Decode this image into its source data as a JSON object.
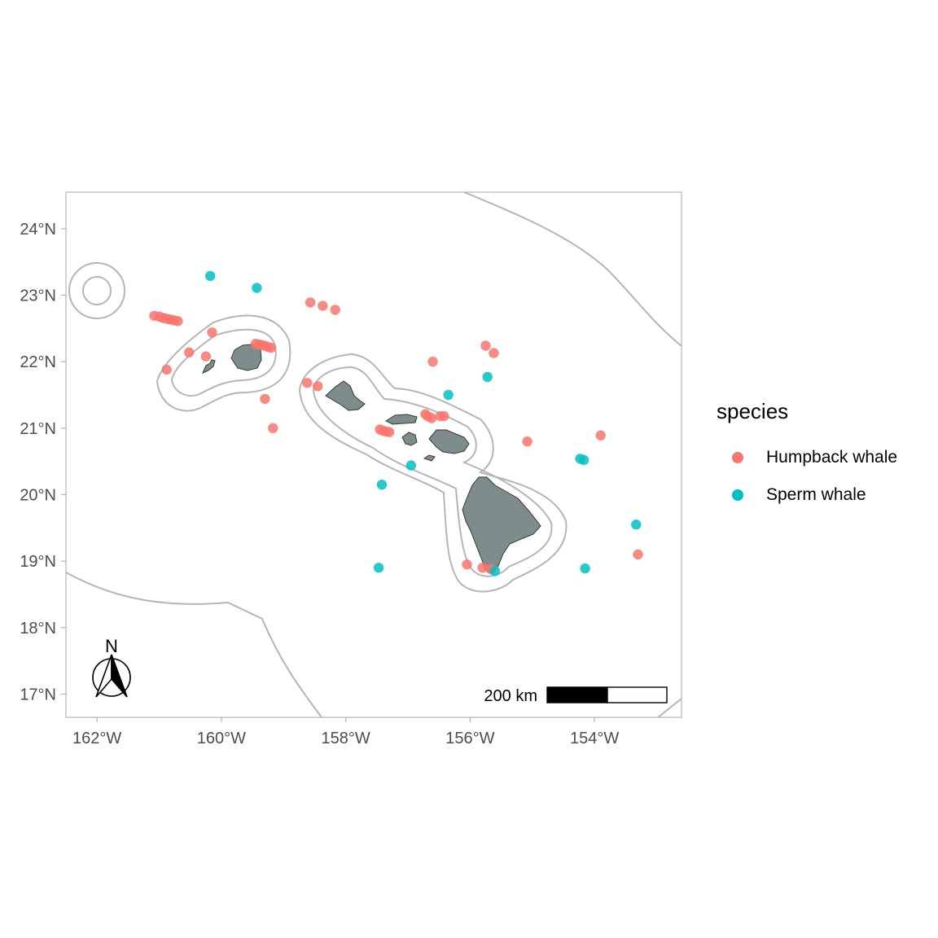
{
  "map": {
    "x_ticks": [
      "162°W",
      "160°W",
      "158°W",
      "156°W",
      "154°W"
    ],
    "y_ticks": [
      "24°N",
      "23°N",
      "22°N",
      "21°N",
      "20°N",
      "19°N",
      "18°N",
      "17°N"
    ],
    "north_arrow_label": "N",
    "scale_bar_label": "200 km",
    "land_color": "#7f8c8c",
    "buffer_color": "#b5b5b5"
  },
  "legend": {
    "title": "species",
    "items": [
      {
        "label": "Humpback whale",
        "color": "#f8766d"
      },
      {
        "label": "Sperm whale",
        "color": "#00bfc4"
      }
    ]
  },
  "chart_data": {
    "type": "scatter",
    "xlabel": "",
    "ylabel": "",
    "xlim": [
      -162.5,
      -152.6
    ],
    "ylim": [
      16.65,
      24.55
    ],
    "series": [
      {
        "name": "Humpback whale",
        "color": "#f8766d",
        "points": [
          [
            -161.08,
            22.69
          ],
          [
            -161.0,
            22.68
          ],
          [
            -160.95,
            22.66
          ],
          [
            -160.9,
            22.65
          ],
          [
            -160.85,
            22.64
          ],
          [
            -160.8,
            22.63
          ],
          [
            -160.75,
            22.62
          ],
          [
            -160.7,
            22.61
          ],
          [
            -160.15,
            22.44
          ],
          [
            -160.52,
            22.14
          ],
          [
            -160.25,
            22.08
          ],
          [
            -160.88,
            21.88
          ],
          [
            -159.45,
            22.27
          ],
          [
            -159.4,
            22.26
          ],
          [
            -159.35,
            22.25
          ],
          [
            -159.3,
            22.24
          ],
          [
            -159.25,
            22.22
          ],
          [
            -159.2,
            22.21
          ],
          [
            -159.3,
            21.44
          ],
          [
            -159.17,
            21.0
          ],
          [
            -158.57,
            22.89
          ],
          [
            -158.37,
            22.84
          ],
          [
            -158.17,
            22.78
          ],
          [
            -158.62,
            21.68
          ],
          [
            -158.45,
            21.63
          ],
          [
            -157.45,
            20.98
          ],
          [
            -157.4,
            20.96
          ],
          [
            -157.35,
            20.95
          ],
          [
            -157.3,
            20.94
          ],
          [
            -156.72,
            21.21
          ],
          [
            -156.68,
            21.18
          ],
          [
            -156.62,
            21.15
          ],
          [
            -156.48,
            21.18
          ],
          [
            -156.42,
            21.18
          ],
          [
            -156.6,
            22.0
          ],
          [
            -155.75,
            22.24
          ],
          [
            -155.62,
            22.13
          ],
          [
            -155.08,
            20.8
          ],
          [
            -153.9,
            20.89
          ],
          [
            -156.05,
            18.95
          ],
          [
            -155.8,
            18.9
          ],
          [
            -155.67,
            18.88
          ],
          [
            -153.3,
            19.1
          ]
        ]
      },
      {
        "name": "Sperm whale",
        "color": "#00bfc4",
        "points": [
          [
            -160.18,
            23.29
          ],
          [
            -159.43,
            23.11
          ],
          [
            -156.35,
            21.5
          ],
          [
            -155.72,
            21.77
          ],
          [
            -157.42,
            20.15
          ],
          [
            -156.95,
            20.44
          ],
          [
            -154.23,
            20.54
          ],
          [
            -154.17,
            20.52
          ],
          [
            -153.33,
            19.55
          ],
          [
            -157.47,
            18.9
          ],
          [
            -154.15,
            18.89
          ],
          [
            -155.6,
            18.85
          ]
        ]
      }
    ]
  }
}
